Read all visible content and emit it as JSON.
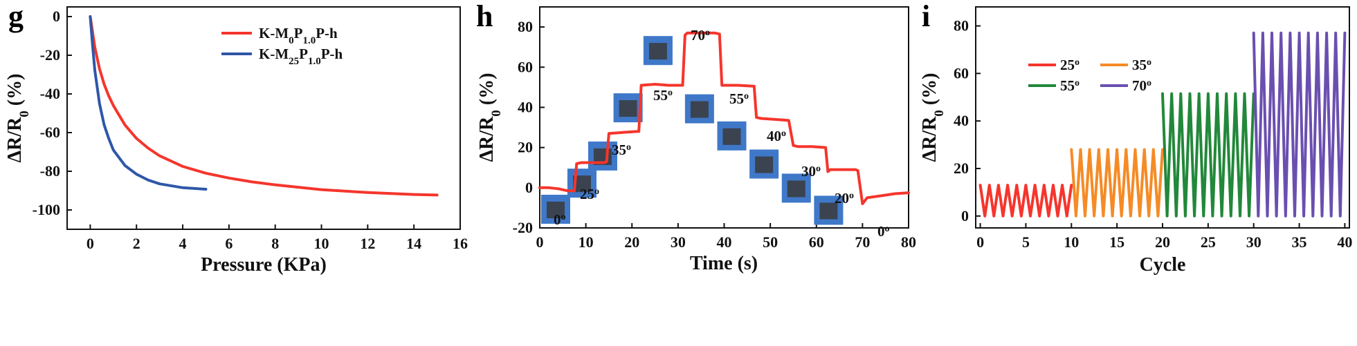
{
  "chart_data": [
    {
      "panel": "g",
      "type": "line",
      "xlabel": "Pressure (KPa)",
      "ylabel": "ΔR/R0 (%)",
      "xlim": [
        -1,
        16
      ],
      "ylim": [
        -110,
        5
      ],
      "xticks": [
        "0",
        "2",
        "4",
        "6",
        "8",
        "10",
        "12",
        "14",
        "16"
      ],
      "yticks": [
        "0",
        "-20",
        "-40",
        "-60",
        "-80",
        "-100"
      ],
      "legend_position": "top-right",
      "series": [
        {
          "name": "K-M0P1.0P-h",
          "color": "#f5352c",
          "x": [
            0,
            0.1,
            0.2,
            0.4,
            0.6,
            0.8,
            1,
            1.5,
            2,
            2.5,
            3,
            4,
            5,
            6,
            7,
            8,
            10,
            12,
            14,
            15
          ],
          "y": [
            0,
            -8,
            -16,
            -27,
            -35,
            -41,
            -46,
            -56,
            -63,
            -68,
            -72,
            -77.5,
            -81,
            -83.5,
            -85.5,
            -87,
            -89.5,
            -91,
            -92,
            -92.3
          ]
        },
        {
          "name": "K-M25P1.0P-h",
          "color": "#2f57a8",
          "x": [
            0,
            0.1,
            0.2,
            0.4,
            0.6,
            0.8,
            1,
            1.5,
            2,
            2.5,
            3,
            4,
            5
          ],
          "y": [
            0,
            -15,
            -28,
            -45,
            -56,
            -63,
            -69,
            -77,
            -81.5,
            -84.5,
            -86.5,
            -88.5,
            -89.3
          ]
        }
      ]
    },
    {
      "panel": "h",
      "type": "line",
      "xlabel": "Time (s)",
      "ylabel": "ΔR/R0 (%)",
      "xlim": [
        0,
        80
      ],
      "ylim": [
        -20,
        90
      ],
      "xticks": [
        "0",
        "10",
        "20",
        "30",
        "40",
        "50",
        "60",
        "70",
        "80"
      ],
      "yticks": [
        "-20",
        "0",
        "20",
        "40",
        "60",
        "80"
      ],
      "series": [
        {
          "color": "#f5352c",
          "x": [
            0,
            2,
            4,
            6,
            7.5,
            8,
            9,
            11,
            14,
            14.5,
            15,
            18,
            21,
            21.5,
            22,
            25,
            28,
            28.5,
            29,
            31,
            31.5,
            32,
            35,
            38,
            39,
            39.5,
            43,
            46.5,
            47,
            48,
            51,
            54,
            55,
            56,
            59,
            62,
            62.5,
            63,
            65,
            68.5,
            69,
            70,
            71,
            74,
            77,
            80
          ],
          "y": [
            0,
            0,
            -0.5,
            -1.5,
            -1.5,
            12,
            12.5,
            12.5,
            12.5,
            13,
            27,
            27.5,
            28,
            28,
            51,
            51.5,
            51,
            51,
            51,
            51,
            76,
            77,
            77,
            77,
            76.5,
            51,
            51,
            50.5,
            35,
            34.5,
            34,
            33.5,
            21,
            20.5,
            20.5,
            20,
            8,
            9,
            9,
            9,
            8.5,
            -8,
            -5,
            -4,
            -3,
            -2.5
          ]
        }
      ],
      "annotations": [
        "0o",
        "25o",
        "35o",
        "55o",
        "70o",
        "55o",
        "40o",
        "30o",
        "20o",
        "0o"
      ]
    },
    {
      "panel": "i",
      "type": "line",
      "xlabel": "Cycle",
      "ylabel": "ΔR/R0 (%)",
      "xlim": [
        -0.5,
        40.5
      ],
      "ylim": [
        -5,
        88
      ],
      "xticks": [
        "0",
        "5",
        "10",
        "15",
        "20",
        "25",
        "30",
        "35",
        "40"
      ],
      "yticks": [
        "0",
        "20",
        "40",
        "60",
        "80"
      ],
      "legend_position": "top-left",
      "series": [
        {
          "name": "25o",
          "color": "#f5352c",
          "cycles": [
            0,
            10
          ],
          "peak": 13
        },
        {
          "name": "35o",
          "color": "#f58b26",
          "cycles": [
            10,
            20
          ],
          "peak": 28
        },
        {
          "name": "55o",
          "color": "#22883a",
          "cycles": [
            20,
            30
          ],
          "peak": 51.5
        },
        {
          "name": "70o",
          "color": "#6a4fb0",
          "cycles": [
            30,
            40
          ],
          "peak": 77
        }
      ]
    }
  ],
  "panels": {
    "g": {
      "letter": "g",
      "ylabel_main": "ΔR/R",
      "ylabel_sub": "0",
      "ylabel_tail": " (%)",
      "xlabel": "Pressure (KPa)",
      "legend": [
        {
          "pre": "K-M",
          "s1": "0",
          "mid": "P",
          "s2": "1.0",
          "post": "P-h"
        },
        {
          "pre": "K-M",
          "s1": "25",
          "mid": "P",
          "s2": "1.0",
          "post": "P-h"
        }
      ]
    },
    "h": {
      "letter": "h",
      "ylabel_main": "ΔR/R",
      "ylabel_sub": "0",
      "ylabel_tail": " (%)",
      "xlabel": "Time (s)",
      "labels": [
        {
          "num": "0",
          "sup": "o"
        },
        {
          "num": "25",
          "sup": "o"
        },
        {
          "num": "35",
          "sup": "o"
        },
        {
          "num": "55",
          "sup": "o"
        },
        {
          "num": "70",
          "sup": "o"
        },
        {
          "num": "55",
          "sup": "o"
        },
        {
          "num": "40",
          "sup": "o"
        },
        {
          "num": "30",
          "sup": "o"
        },
        {
          "num": "20",
          "sup": "o"
        },
        {
          "num": "0",
          "sup": "o"
        }
      ]
    },
    "i": {
      "letter": "i",
      "ylabel_main": "ΔR/R",
      "ylabel_sub": "0",
      "ylabel_tail": " (%)",
      "xlabel": "Cycle",
      "legend": [
        {
          "num": "25",
          "sup": "o"
        },
        {
          "num": "35",
          "sup": "o"
        },
        {
          "num": "55",
          "sup": "o"
        },
        {
          "num": "70",
          "sup": "o"
        }
      ]
    }
  }
}
